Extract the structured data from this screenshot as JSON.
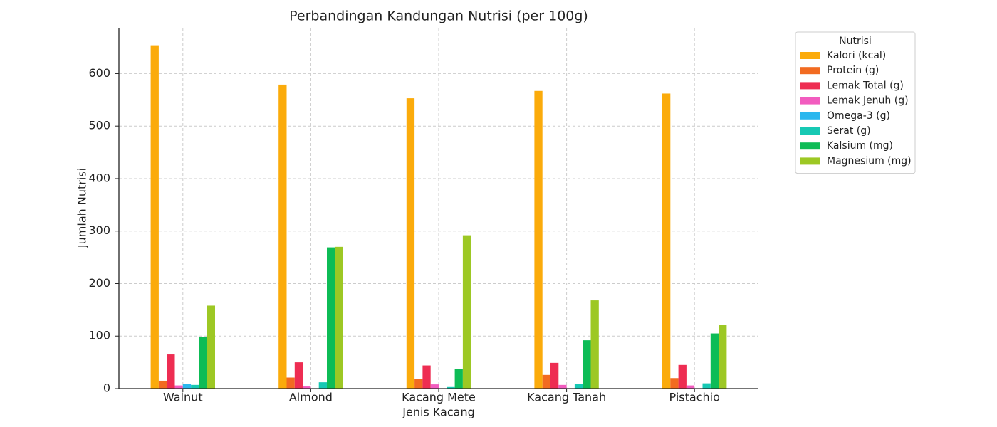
{
  "chart_data": {
    "type": "bar",
    "title": "Perbandingan Kandungan Nutrisi (per 100g)",
    "x_label": "Jenis Kacang",
    "y_label": "Jumlah Nutrisi",
    "legend_title": "Nutrisi",
    "categories": [
      "Walnut",
      "Almond",
      "Kacang Mete",
      "Kacang Tanah",
      "Pistachio"
    ],
    "series": [
      {
        "name": "Kalori (kcal)",
        "color": "#fbab0b",
        "values": [
          654,
          579,
          553,
          567,
          562
        ]
      },
      {
        "name": "Protein (g)",
        "color": "#f26b21",
        "values": [
          15,
          21,
          18,
          26,
          20
        ]
      },
      {
        "name": "Lemak Total (g)",
        "color": "#ee2d52",
        "values": [
          65,
          50,
          44,
          49,
          45
        ]
      },
      {
        "name": "Lemak Jenuh (g)",
        "color": "#f25cbf",
        "values": [
          6,
          4,
          8,
          7,
          6
        ]
      },
      {
        "name": "Omega-3 (g)",
        "color": "#2bb7ee",
        "values": [
          9,
          0,
          0,
          0,
          0
        ]
      },
      {
        "name": "Serat (g)",
        "color": "#17c9b4",
        "values": [
          7,
          12,
          3,
          9,
          10
        ]
      },
      {
        "name": "Kalsium (mg)",
        "color": "#0dbc56",
        "values": [
          98,
          269,
          37,
          92,
          105
        ]
      },
      {
        "name": "Magnesium (mg)",
        "color": "#9dc824",
        "values": [
          158,
          270,
          292,
          168,
          121
        ]
      }
    ],
    "ylim": [
      0,
      686
    ],
    "yticks": [
      0,
      100,
      200,
      300,
      400,
      500,
      600
    ],
    "grid": true
  }
}
